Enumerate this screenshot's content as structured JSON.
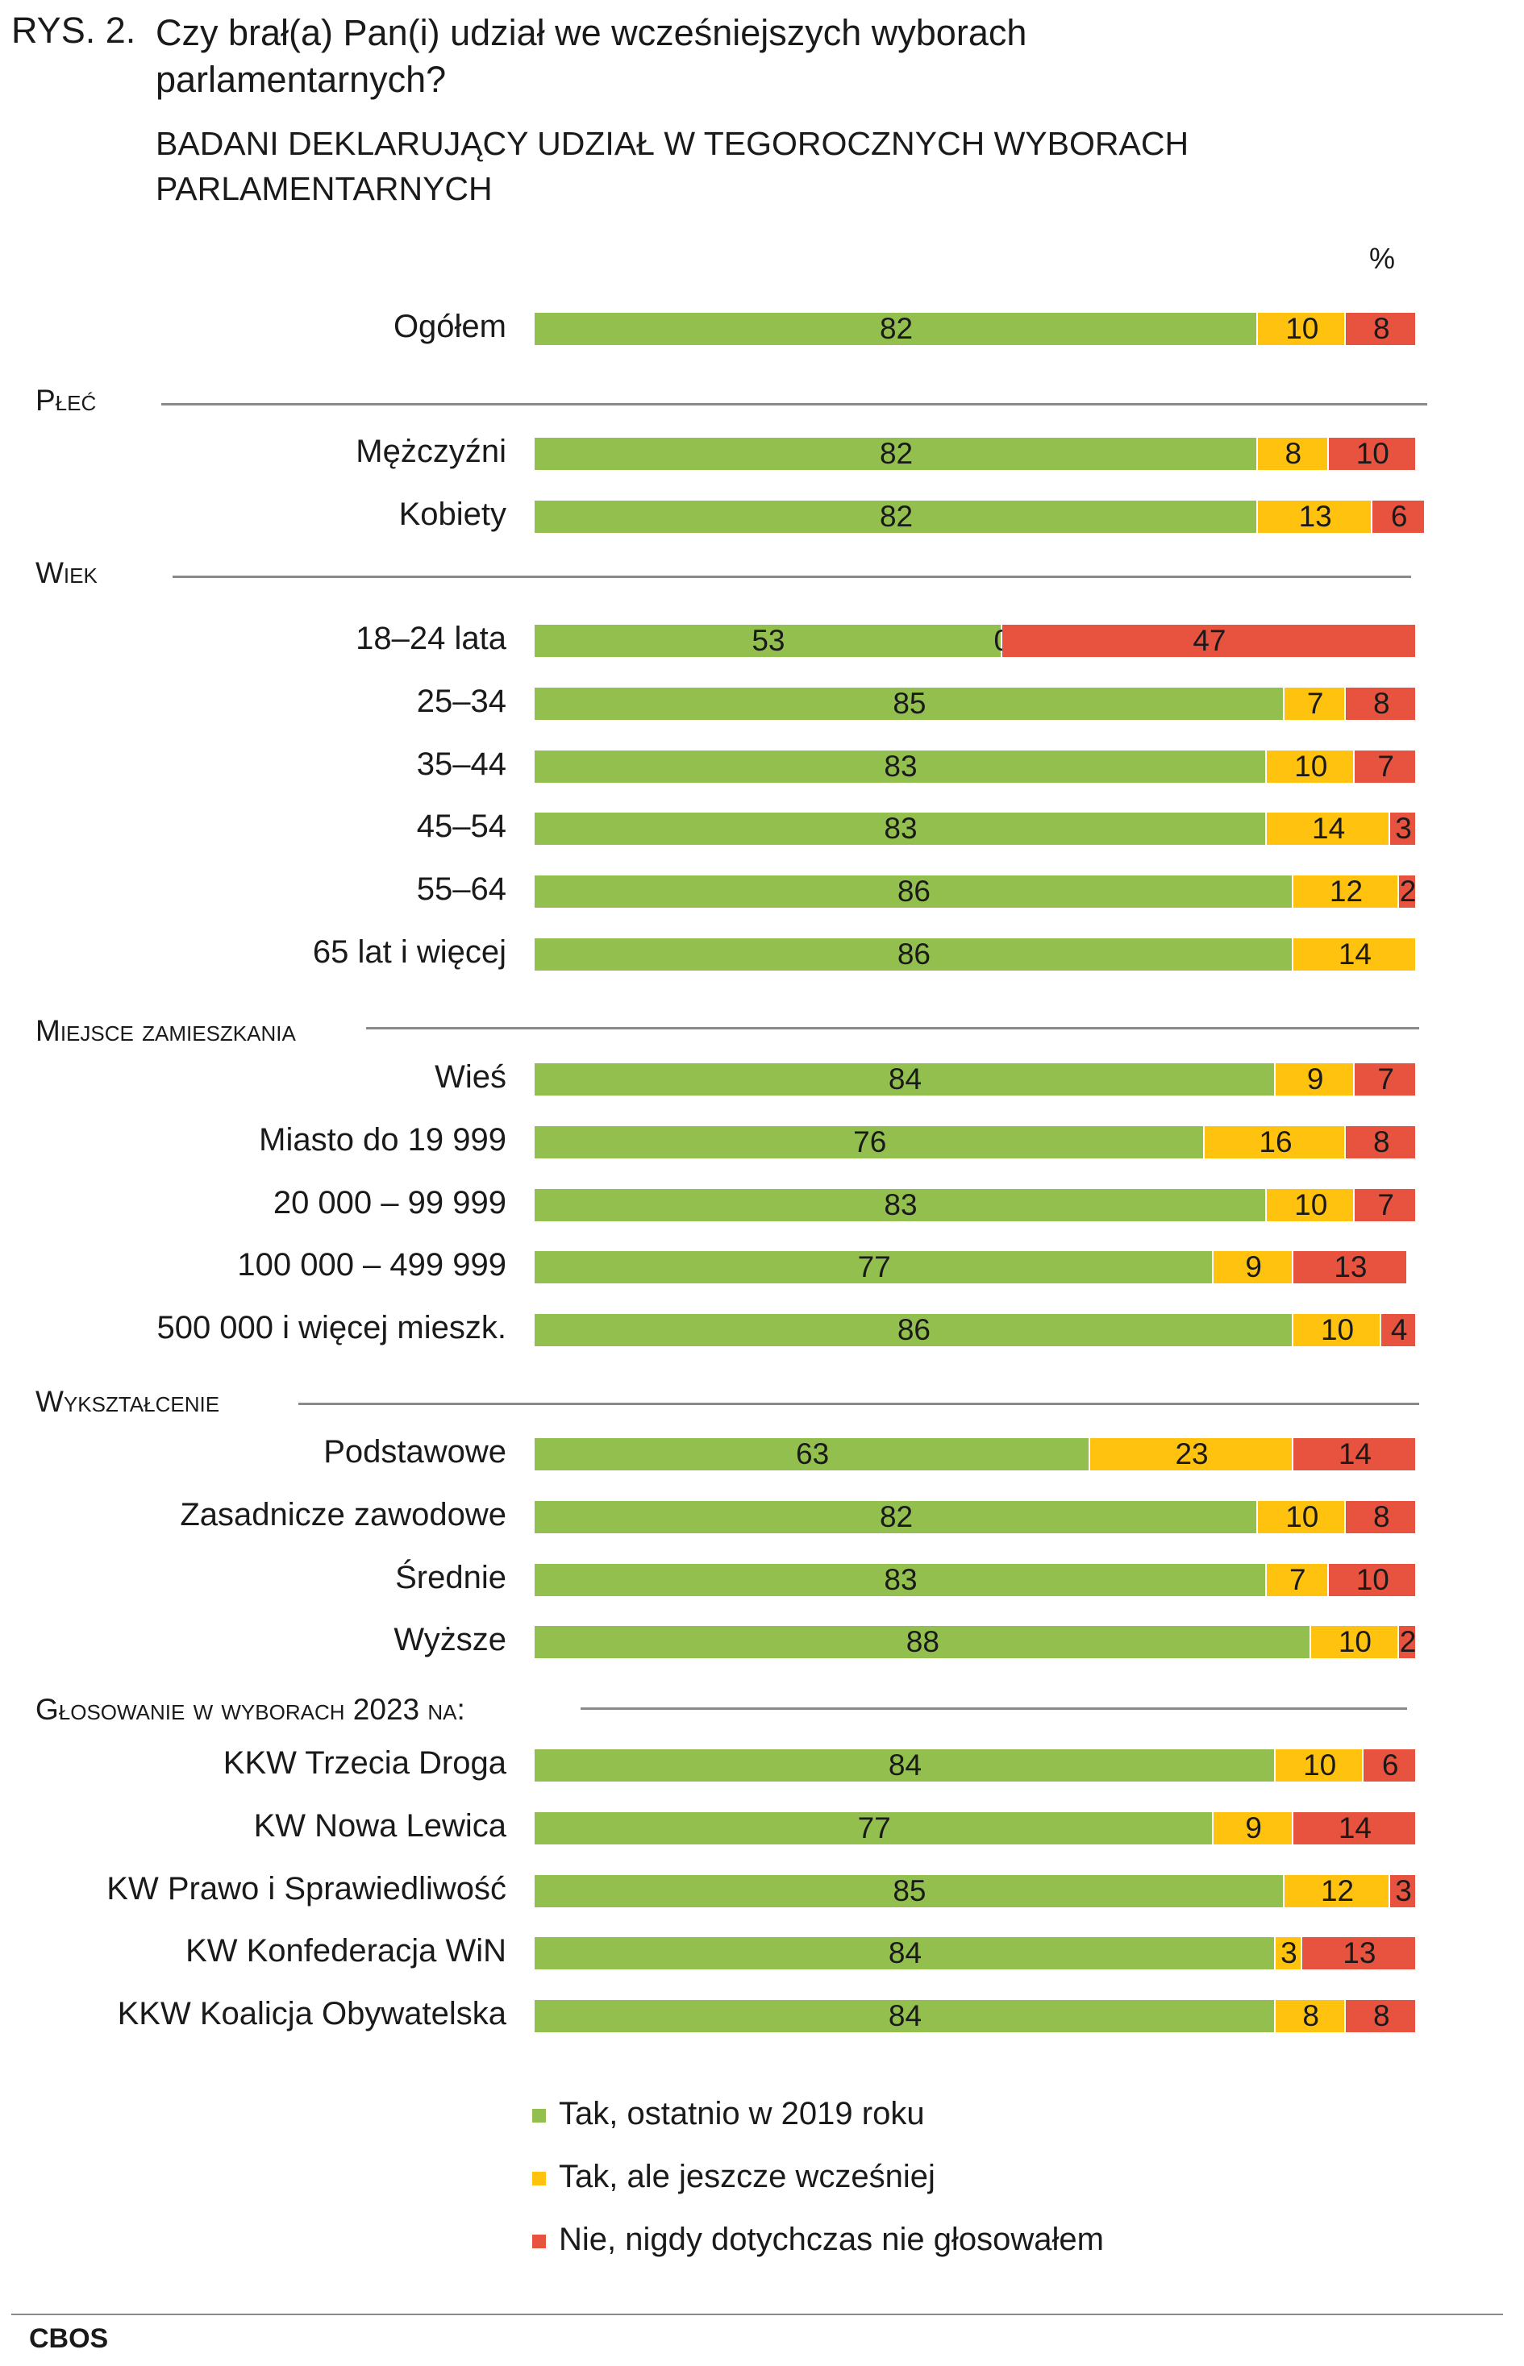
{
  "figure_number": "RYS. 2.",
  "question": "Czy brał(a) Pan(i) udział we wcześniejszych wyborach parlamentarnych?",
  "subtitle": "Badani deklarujący udział w tegorocznych wyborach parlamentarnych",
  "unit": "%",
  "source": "CBOS",
  "colors": {
    "green": "#92bf4e",
    "yellow": "#ffc20e",
    "red": "#e8533f",
    "rule": "#8a8a8a"
  },
  "chart_data": {
    "type": "bar",
    "orientation": "horizontal",
    "stacked": true,
    "xlim": [
      0,
      100
    ],
    "legend": [
      {
        "name": "Tak, ostatnio w 2019 roku",
        "color": "#92bf4e"
      },
      {
        "name": "Tak, ale jeszcze wcześniej",
        "color": "#ffc20e"
      },
      {
        "name": "Nie, nigdy dotychczas nie głosowałem",
        "color": "#e8533f"
      }
    ],
    "groups": [
      {
        "label": "",
        "rows": [
          {
            "label": "Ogółem",
            "values": [
              82,
              10,
              8
            ]
          }
        ]
      },
      {
        "label": "Płeć",
        "rows": [
          {
            "label": "Mężczyźni",
            "values": [
              82,
              8,
              10
            ]
          },
          {
            "label": "Kobiety",
            "values": [
              82,
              13,
              6
            ]
          }
        ]
      },
      {
        "label": "Wiek",
        "rows": [
          {
            "label": "18–24 lata",
            "values": [
              53,
              0,
              47
            ]
          },
          {
            "label": "25–34",
            "values": [
              85,
              7,
              8
            ]
          },
          {
            "label": "35–44",
            "values": [
              83,
              10,
              7
            ]
          },
          {
            "label": "45–54",
            "values": [
              83,
              14,
              3
            ]
          },
          {
            "label": "55–64",
            "values": [
              86,
              12,
              2
            ]
          },
          {
            "label": "65 lat i więcej",
            "values": [
              86,
              14,
              null
            ]
          }
        ]
      },
      {
        "label": "Miejsce zamieszkania",
        "rows": [
          {
            "label": "Wieś",
            "values": [
              84,
              9,
              7
            ]
          },
          {
            "label": "Miasto do 19 999",
            "values": [
              76,
              16,
              8
            ]
          },
          {
            "label": "20 000 – 99 999",
            "values": [
              83,
              10,
              7
            ]
          },
          {
            "label": "100 000 – 499 999",
            "values": [
              77,
              9,
              13
            ]
          },
          {
            "label": "500 000 i więcej mieszk.",
            "values": [
              86,
              10,
              4
            ]
          }
        ]
      },
      {
        "label": "Wykształcenie",
        "rows": [
          {
            "label": "Podstawowe",
            "values": [
              63,
              23,
              14
            ]
          },
          {
            "label": "Zasadnicze zawodowe",
            "values": [
              82,
              10,
              8
            ]
          },
          {
            "label": "Średnie",
            "values": [
              83,
              7,
              10
            ]
          },
          {
            "label": "Wyższe",
            "values": [
              88,
              10,
              2
            ]
          }
        ]
      },
      {
        "label": "Głosowanie w wyborach 2023 na:",
        "rows": [
          {
            "label": "KKW Trzecia Droga",
            "values": [
              84,
              10,
              6
            ]
          },
          {
            "label": "KW Nowa Lewica",
            "values": [
              77,
              9,
              14
            ]
          },
          {
            "label": "KW Prawo i Sprawiedliwość",
            "values": [
              85,
              12,
              3
            ]
          },
          {
            "label": "KW Konfederacja WiN",
            "values": [
              84,
              3,
              13
            ]
          },
          {
            "label": "KKW Koalicja Obywatelska",
            "values": [
              84,
              8,
              8
            ]
          }
        ]
      }
    ]
  }
}
